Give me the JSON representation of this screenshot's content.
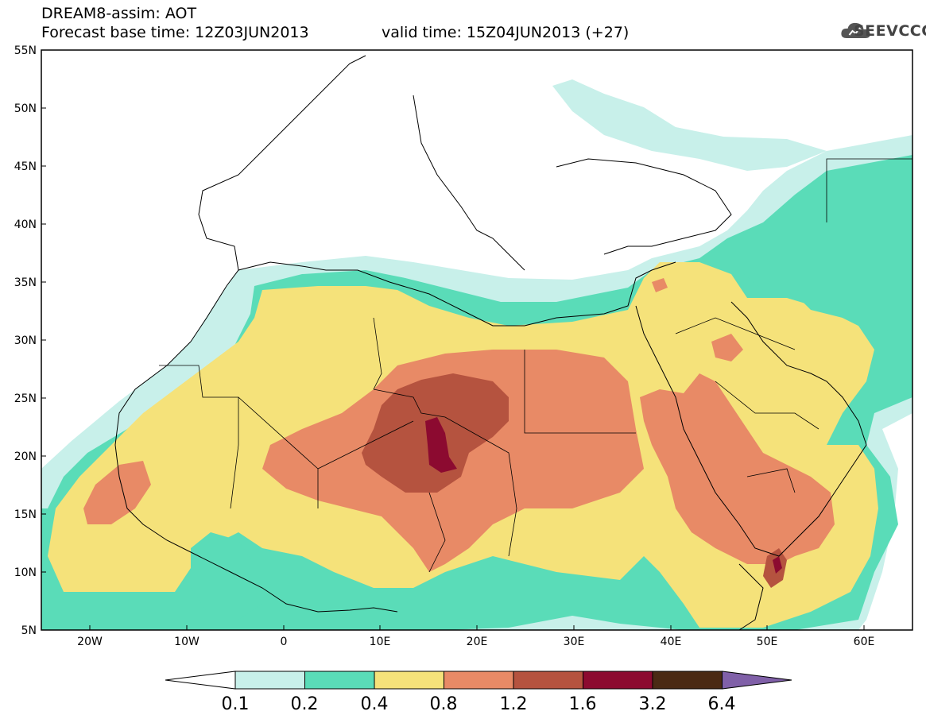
{
  "title_line1": "DREAM8-assim: AOT",
  "title_line2": "Forecast base time: 12Z03JUN2013",
  "title_line2_valid": "valid time: 15Z04JUN2013 (+27)",
  "logo_text": "SEEVCCC",
  "map": {
    "lon_range": [
      -25,
      65
    ],
    "lat_range": [
      5,
      55
    ],
    "lat_labels": [
      "55N",
      "50N",
      "45N",
      "40N",
      "35N",
      "30N",
      "25N",
      "20N",
      "15N",
      "10N",
      "5N"
    ],
    "lon_labels": [
      "20W",
      "10W",
      "0",
      "10E",
      "20E",
      "30E",
      "40E",
      "50E",
      "60E"
    ]
  },
  "colorbar": {
    "labels": [
      "0.1",
      "0.2",
      "0.4",
      "0.8",
      "1.2",
      "1.6",
      "3.2",
      "6.4"
    ],
    "colors": [
      "#ffffff",
      "#c8f0ea",
      "#5adcb8",
      "#f5e27a",
      "#e88a66",
      "#b5533f",
      "#8c0a30",
      "#4a2a14",
      "#8060a8"
    ]
  }
}
